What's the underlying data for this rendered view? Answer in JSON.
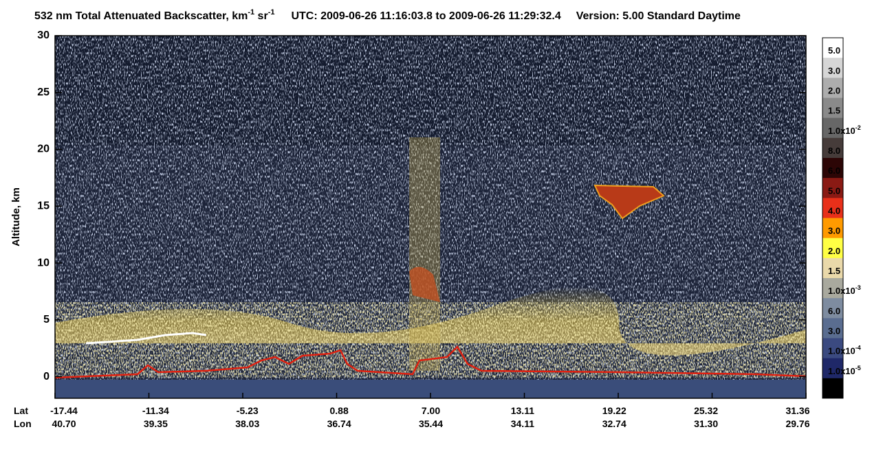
{
  "chart_data": {
    "type": "heatmap",
    "title": {
      "main": "532 nm Total Attenuated Backscatter, km",
      "sup1": "-1",
      "unit2": " sr",
      "sup2": "-1",
      "time": "UTC:  2009-06-26 11:16:03.8  to  2009-06-26 11:29:32.4",
      "version": "Version: 5.00  Standard  Daytime"
    },
    "ylabel": "Altitude, km",
    "ylim": [
      -1.9,
      30
    ],
    "yticks": [
      0,
      5,
      10,
      15,
      20,
      25,
      30
    ],
    "x_row_names": [
      "Lat",
      "Lon"
    ],
    "lat": [
      "-17.44",
      "-11.34",
      "-5.23",
      "0.88",
      "7.00",
      "13.11",
      "19.22",
      "25.32",
      "31.36"
    ],
    "lon": [
      "40.70",
      "39.35",
      "38.03",
      "36.74",
      "35.44",
      "34.11",
      "32.74",
      "31.30",
      "29.76"
    ],
    "colorbar": {
      "colors": [
        "#ffffff",
        "#d6d6d6",
        "#adadad",
        "#8a8a8a",
        "#676767",
        "#463c3a",
        "#2c0606",
        "#8a1a14",
        "#e8301a",
        "#ff9a00",
        "#ffff44",
        "#ead9aa",
        "#a9a99e",
        "#7e8ca0",
        "#5a6d90",
        "#3b4a80",
        "#1f2868",
        "#000000"
      ],
      "labels": [
        {
          "text": "5.0"
        },
        {
          "text": "3.0"
        },
        {
          "text": "2.0"
        },
        {
          "text": "1.5"
        },
        {
          "text": "1.0x10",
          "exp": "-2"
        },
        {
          "text": "8.0"
        },
        {
          "text": "6.0"
        },
        {
          "text": "5.0"
        },
        {
          "text": "4.0"
        },
        {
          "text": "3.0"
        },
        {
          "text": "2.0"
        },
        {
          "text": "1.5"
        },
        {
          "text": "1.0x10",
          "exp": "-3"
        },
        {
          "text": "6.0"
        },
        {
          "text": "3.0"
        },
        {
          "text": "1.0x10",
          "exp": "-4"
        },
        {
          "text": "1.0x10",
          "exp": "-5"
        }
      ]
    }
  }
}
